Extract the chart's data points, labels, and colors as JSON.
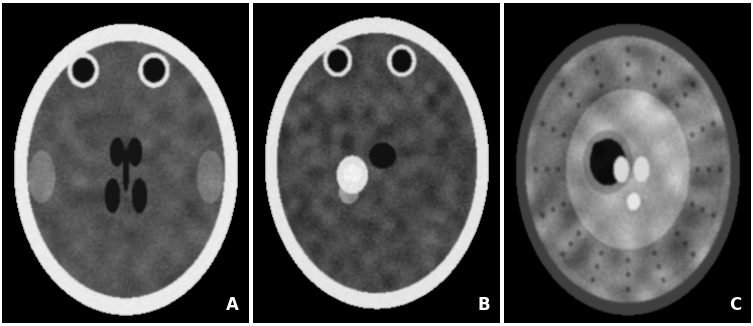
{
  "figure_width": 7.53,
  "figure_height": 3.26,
  "dpi": 100,
  "background_color": "#ffffff",
  "panel_labels": [
    "A",
    "B",
    "C"
  ],
  "label_color": "#ffffff",
  "label_fontsize": 12,
  "outer_bg": "#000000"
}
